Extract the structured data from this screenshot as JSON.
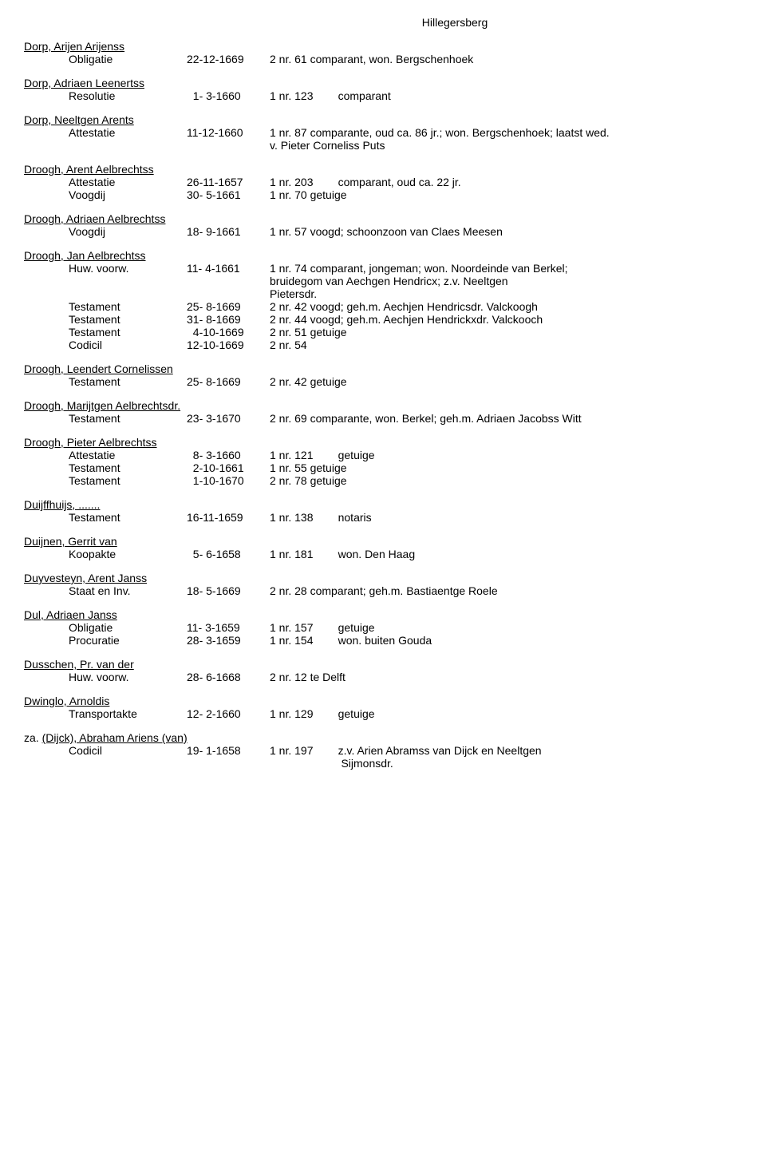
{
  "header": "Hillegersberg",
  "entries": [
    {
      "name": "Dorp, Arijen Arijenss",
      "lines": [
        {
          "type": "Obligatie",
          "date": "22-12-1669",
          "desc": "2 nr. 61 comparant, won. Bergschenhoek"
        }
      ]
    },
    {
      "name": "Dorp, Adriaen Leenertss",
      "lines": [
        {
          "type": "Resolutie",
          "date": "  1- 3-1660",
          "desc": "1 nr. 123        comparant"
        }
      ]
    },
    {
      "name": "Dorp, Neeltgen Arents",
      "lines": [
        {
          "type": "Attestatie",
          "date": "11-12-1660",
          "desc": "1 nr. 87 comparante, oud ca. 86 jr.; won. Bergschenhoek; laatst wed."
        },
        {
          "cont": "v. Pieter Corneliss Puts"
        }
      ]
    },
    {
      "name": "Droogh, Arent Aelbrechtss",
      "lines": [
        {
          "type": "Attestatie",
          "date": "26-11-1657",
          "desc": "1 nr. 203        comparant, oud ca. 22 jr."
        },
        {
          "type": "Voogdij",
          "date": "30- 5-1661",
          "desc": "1 nr. 70 getuige"
        }
      ]
    },
    {
      "name": "Droogh, Adriaen Aelbrechtss",
      "lines": [
        {
          "type": "Voogdij",
          "date": "18- 9-1661",
          "desc": "1 nr. 57 voogd; schoonzoon van Claes Meesen"
        }
      ]
    },
    {
      "name": "Droogh, Jan Aelbrechtss",
      "lines": [
        {
          "type": "Huw. voorw.",
          "date": "11- 4-1661",
          "desc": "1 nr. 74 comparant, jongeman; won. Noordeinde van Berkel;"
        },
        {
          "cont": "bruidegom van Aechgen Hendricx; z.v. Neeltgen"
        },
        {
          "cont": "Pietersdr."
        },
        {
          "type": "Testament",
          "date": "25- 8-1669",
          "desc": "2 nr. 42 voogd; geh.m. Aechjen Hendricsdr. Valckoogh"
        },
        {
          "type": "Testament",
          "date": "31- 8-1669",
          "desc": "2 nr. 44 voogd; geh.m. Aechjen Hendrickxdr. Valckooch"
        },
        {
          "type": "Testament",
          "date": "  4-10-1669",
          "desc": "2 nr. 51 getuige"
        },
        {
          "type": "Codicil",
          "date": "12-10-1669",
          "desc": "2 nr. 54"
        }
      ]
    },
    {
      "name": "Droogh, Leendert Cornelissen",
      "lines": [
        {
          "type": "Testament",
          "date": "25- 8-1669",
          "desc": "2 nr. 42 getuige"
        }
      ]
    },
    {
      "name": "Droogh, Marijtgen Aelbrechtsdr.",
      "lines": [
        {
          "type": "Testament",
          "date": "23- 3-1670",
          "desc": "2 nr. 69 comparante, won. Berkel; geh.m. Adriaen Jacobss Witt"
        }
      ]
    },
    {
      "name": "Droogh, Pieter Aelbrechtss",
      "lines": [
        {
          "type": "Attestatie",
          "date": "  8- 3-1660",
          "desc": "1 nr. 121        getuige"
        },
        {
          "type": "Testament",
          "date": "  2-10-1661",
          "desc": "1 nr. 55 getuige"
        },
        {
          "type": "Testament",
          "date": "  1-10-1670",
          "desc": "2 nr. 78 getuige"
        }
      ]
    },
    {
      "name": "Duijffhuijs, .......",
      "lines": [
        {
          "type": "Testament",
          "date": "16-11-1659",
          "desc": "1 nr. 138        notaris"
        }
      ]
    },
    {
      "name": "Duijnen, Gerrit van",
      "lines": [
        {
          "type": "Koopakte",
          "date": "  5- 6-1658",
          "desc": "1 nr. 181        won. Den Haag"
        }
      ]
    },
    {
      "name": "Duyvesteyn, Arent Janss",
      "lines": [
        {
          "type": "Staat en Inv.",
          "date": "18- 5-1669",
          "desc": "2 nr. 28 comparant; geh.m. Bastiaentge Roele"
        }
      ]
    },
    {
      "name": "Dul, Adriaen Janss",
      "lines": [
        {
          "type": "Obligatie",
          "date": "11- 3-1659",
          "desc": "1 nr. 157        getuige"
        },
        {
          "type": "Procuratie",
          "date": "28- 3-1659",
          "desc": "1 nr. 154        won. buiten Gouda"
        }
      ]
    },
    {
      "name": "Dusschen, Pr. van der",
      "lines": [
        {
          "type": "Huw. voorw.",
          "date": "28- 6-1668",
          "desc": "2 nr. 12 te Delft"
        }
      ]
    },
    {
      "name": "Dwinglo, Arnoldis",
      "lines": [
        {
          "type": "Transportakte",
          "date": "12- 2-1660",
          "desc": "1 nr. 129        getuige"
        }
      ]
    },
    {
      "name": "za. (Dijck), Abraham Ariens (van)",
      "lines": [
        {
          "type": "Codicil",
          "date": "19- 1-1658",
          "desc": "1 nr. 197        z.v. Arien Abramss van Dijck en Neeltgen"
        },
        {
          "cont": "                       Sijmonsdr."
        }
      ]
    }
  ]
}
